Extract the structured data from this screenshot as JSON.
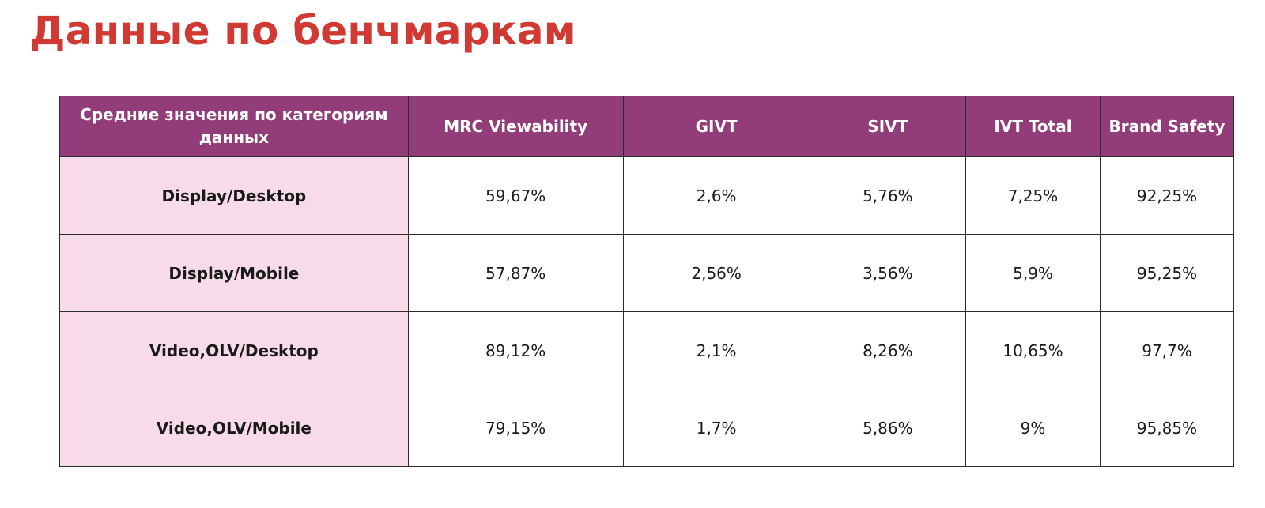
{
  "title": "Данные по бенчмаркам",
  "table": {
    "headers": [
      "Средние значения по категориям данных",
      "MRC Viewability",
      "GIVT",
      "SIVT",
      "IVT Total",
      "Brand Safety"
    ],
    "rows": [
      {
        "label": "Display/Desktop",
        "values": [
          "59,67%",
          "2,6%",
          "5,76%",
          "7,25%",
          "92,25%"
        ]
      },
      {
        "label": "Display/Mobile",
        "values": [
          "57,87%",
          "2,56%",
          "3,56%",
          "5,9%",
          "95,25%"
        ]
      },
      {
        "label": "Video,OLV/Desktop",
        "values": [
          "89,12%",
          "2,1%",
          "8,26%",
          "10,65%",
          "97,7%"
        ]
      },
      {
        "label": "Video,OLV/Mobile",
        "values": [
          "79,15%",
          "1,7%",
          "5,86%",
          "9%",
          "95,85%"
        ]
      }
    ]
  },
  "colors": {
    "title": "#d13a33",
    "header_bg": "#923d79",
    "label_bg": "#f7dbea"
  }
}
